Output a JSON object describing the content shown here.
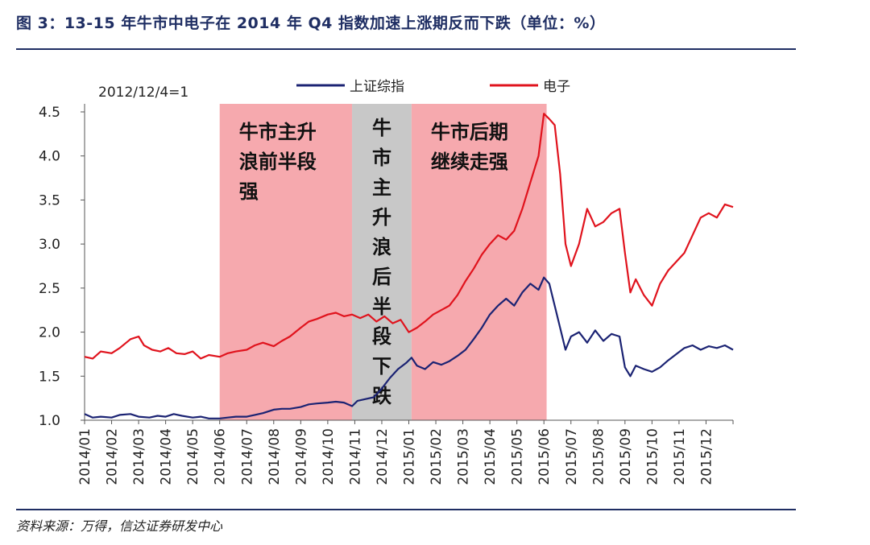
{
  "title": "图 3：13-15 年牛市中电子在 2014 年 Q4 指数加速上涨期反而下跌（单位：%）",
  "source": "资料来源：万得，信达证券研发中心",
  "colors": {
    "title": "#1f2e63",
    "sse": "#1b2373",
    "elec": "#e0131d",
    "band_pink": "#f6a9ae",
    "band_gray": "#c8c8c8"
  },
  "chart_data": {
    "type": "line",
    "annotation": "2012/12/4=1",
    "ylim": [
      1.0,
      4.5
    ],
    "yticks": [
      "1.0",
      "1.5",
      "2.0",
      "2.5",
      "3.0",
      "3.5",
      "4.0",
      "4.5"
    ],
    "x_ticklabels": [
      "2014/01",
      "2014/02",
      "2014/03",
      "2014/04",
      "2014/05",
      "2014/06",
      "2014/07",
      "2014/08",
      "2014/09",
      "2014/10",
      "2014/11",
      "2014/12",
      "2015/01",
      "2015/02",
      "2015/03",
      "2015/04",
      "2015/05",
      "2015/06",
      "2015/07",
      "2015/08",
      "2015/09",
      "2015/10",
      "2015/11",
      "2015/12"
    ],
    "legend": [
      "上证综指",
      "电子"
    ],
    "bands": [
      {
        "from_month": 5,
        "to_month": 9.9,
        "label_lines": [
          "牛市主升",
          "浪前半段",
          "强"
        ],
        "color": "pink"
      },
      {
        "from_month": 9.9,
        "to_month": 12.1,
        "label_lines": [
          "牛",
          "市",
          "主",
          "升",
          "浪",
          "后",
          "半",
          "段",
          "下",
          "跌"
        ],
        "color": "gray",
        "vertical": true
      },
      {
        "from_month": 12.1,
        "to_month": 17.1,
        "label_lines": [
          "牛市后期",
          "继续走强"
        ],
        "color": "pink"
      }
    ],
    "series": [
      {
        "name": "上证综指",
        "points": [
          [
            0,
            1.07
          ],
          [
            0.3,
            1.03
          ],
          [
            0.6,
            1.04
          ],
          [
            1.0,
            1.03
          ],
          [
            1.3,
            1.06
          ],
          [
            1.7,
            1.07
          ],
          [
            2.0,
            1.04
          ],
          [
            2.4,
            1.03
          ],
          [
            2.7,
            1.05
          ],
          [
            3.0,
            1.04
          ],
          [
            3.3,
            1.07
          ],
          [
            3.6,
            1.05
          ],
          [
            4.0,
            1.03
          ],
          [
            4.3,
            1.04
          ],
          [
            4.6,
            1.02
          ],
          [
            5.0,
            1.02
          ],
          [
            5.3,
            1.03
          ],
          [
            5.6,
            1.04
          ],
          [
            6.0,
            1.04
          ],
          [
            6.3,
            1.06
          ],
          [
            6.6,
            1.08
          ],
          [
            7.0,
            1.12
          ],
          [
            7.3,
            1.13
          ],
          [
            7.6,
            1.13
          ],
          [
            8.0,
            1.15
          ],
          [
            8.3,
            1.18
          ],
          [
            8.6,
            1.19
          ],
          [
            9.0,
            1.2
          ],
          [
            9.3,
            1.21
          ],
          [
            9.6,
            1.2
          ],
          [
            9.9,
            1.16
          ],
          [
            10.1,
            1.22
          ],
          [
            10.4,
            1.24
          ],
          [
            10.7,
            1.26
          ],
          [
            11.0,
            1.36
          ],
          [
            11.3,
            1.48
          ],
          [
            11.6,
            1.58
          ],
          [
            11.9,
            1.65
          ],
          [
            12.1,
            1.71
          ],
          [
            12.3,
            1.62
          ],
          [
            12.6,
            1.58
          ],
          [
            12.9,
            1.66
          ],
          [
            13.2,
            1.63
          ],
          [
            13.5,
            1.67
          ],
          [
            13.8,
            1.73
          ],
          [
            14.1,
            1.8
          ],
          [
            14.4,
            1.92
          ],
          [
            14.7,
            2.05
          ],
          [
            15.0,
            2.2
          ],
          [
            15.3,
            2.3
          ],
          [
            15.6,
            2.38
          ],
          [
            15.9,
            2.3
          ],
          [
            16.2,
            2.45
          ],
          [
            16.5,
            2.55
          ],
          [
            16.8,
            2.48
          ],
          [
            17.0,
            2.62
          ],
          [
            17.2,
            2.55
          ],
          [
            17.4,
            2.3
          ],
          [
            17.6,
            2.05
          ],
          [
            17.8,
            1.8
          ],
          [
            18.0,
            1.95
          ],
          [
            18.3,
            2.0
          ],
          [
            18.6,
            1.88
          ],
          [
            18.9,
            2.02
          ],
          [
            19.2,
            1.9
          ],
          [
            19.5,
            1.98
          ],
          [
            19.8,
            1.95
          ],
          [
            20.0,
            1.6
          ],
          [
            20.2,
            1.5
          ],
          [
            20.4,
            1.62
          ],
          [
            20.7,
            1.58
          ],
          [
            21.0,
            1.55
          ],
          [
            21.3,
            1.6
          ],
          [
            21.6,
            1.68
          ],
          [
            21.9,
            1.75
          ],
          [
            22.2,
            1.82
          ],
          [
            22.5,
            1.85
          ],
          [
            22.8,
            1.8
          ],
          [
            23.1,
            1.84
          ],
          [
            23.4,
            1.82
          ],
          [
            23.7,
            1.85
          ],
          [
            24.0,
            1.8
          ]
        ]
      },
      {
        "name": "电子",
        "points": [
          [
            0,
            1.72
          ],
          [
            0.3,
            1.7
          ],
          [
            0.6,
            1.78
          ],
          [
            1.0,
            1.76
          ],
          [
            1.3,
            1.82
          ],
          [
            1.7,
            1.92
          ],
          [
            2.0,
            1.95
          ],
          [
            2.2,
            1.85
          ],
          [
            2.5,
            1.8
          ],
          [
            2.8,
            1.78
          ],
          [
            3.1,
            1.82
          ],
          [
            3.4,
            1.76
          ],
          [
            3.7,
            1.75
          ],
          [
            4.0,
            1.78
          ],
          [
            4.3,
            1.7
          ],
          [
            4.6,
            1.74
          ],
          [
            5.0,
            1.72
          ],
          [
            5.3,
            1.76
          ],
          [
            5.6,
            1.78
          ],
          [
            6.0,
            1.8
          ],
          [
            6.3,
            1.85
          ],
          [
            6.6,
            1.88
          ],
          [
            7.0,
            1.84
          ],
          [
            7.3,
            1.9
          ],
          [
            7.6,
            1.95
          ],
          [
            8.0,
            2.05
          ],
          [
            8.3,
            2.12
          ],
          [
            8.6,
            2.15
          ],
          [
            9.0,
            2.2
          ],
          [
            9.3,
            2.22
          ],
          [
            9.6,
            2.18
          ],
          [
            9.9,
            2.2
          ],
          [
            10.2,
            2.16
          ],
          [
            10.5,
            2.2
          ],
          [
            10.8,
            2.12
          ],
          [
            11.1,
            2.18
          ],
          [
            11.4,
            2.1
          ],
          [
            11.7,
            2.14
          ],
          [
            12.0,
            2.0
          ],
          [
            12.3,
            2.05
          ],
          [
            12.6,
            2.12
          ],
          [
            12.9,
            2.2
          ],
          [
            13.2,
            2.25
          ],
          [
            13.5,
            2.3
          ],
          [
            13.8,
            2.42
          ],
          [
            14.1,
            2.58
          ],
          [
            14.4,
            2.72
          ],
          [
            14.7,
            2.88
          ],
          [
            15.0,
            3.0
          ],
          [
            15.3,
            3.1
          ],
          [
            15.6,
            3.05
          ],
          [
            15.9,
            3.15
          ],
          [
            16.2,
            3.4
          ],
          [
            16.5,
            3.7
          ],
          [
            16.8,
            4.0
          ],
          [
            17.0,
            4.48
          ],
          [
            17.2,
            4.42
          ],
          [
            17.4,
            4.35
          ],
          [
            17.6,
            3.8
          ],
          [
            17.8,
            3.0
          ],
          [
            18.0,
            2.75
          ],
          [
            18.3,
            3.0
          ],
          [
            18.6,
            3.4
          ],
          [
            18.9,
            3.2
          ],
          [
            19.2,
            3.25
          ],
          [
            19.5,
            3.35
          ],
          [
            19.8,
            3.4
          ],
          [
            20.0,
            2.9
          ],
          [
            20.2,
            2.45
          ],
          [
            20.4,
            2.6
          ],
          [
            20.7,
            2.42
          ],
          [
            21.0,
            2.3
          ],
          [
            21.3,
            2.55
          ],
          [
            21.6,
            2.7
          ],
          [
            21.9,
            2.8
          ],
          [
            22.2,
            2.9
          ],
          [
            22.5,
            3.1
          ],
          [
            22.8,
            3.3
          ],
          [
            23.1,
            3.35
          ],
          [
            23.4,
            3.3
          ],
          [
            23.7,
            3.45
          ],
          [
            24.0,
            3.42
          ]
        ]
      }
    ]
  }
}
